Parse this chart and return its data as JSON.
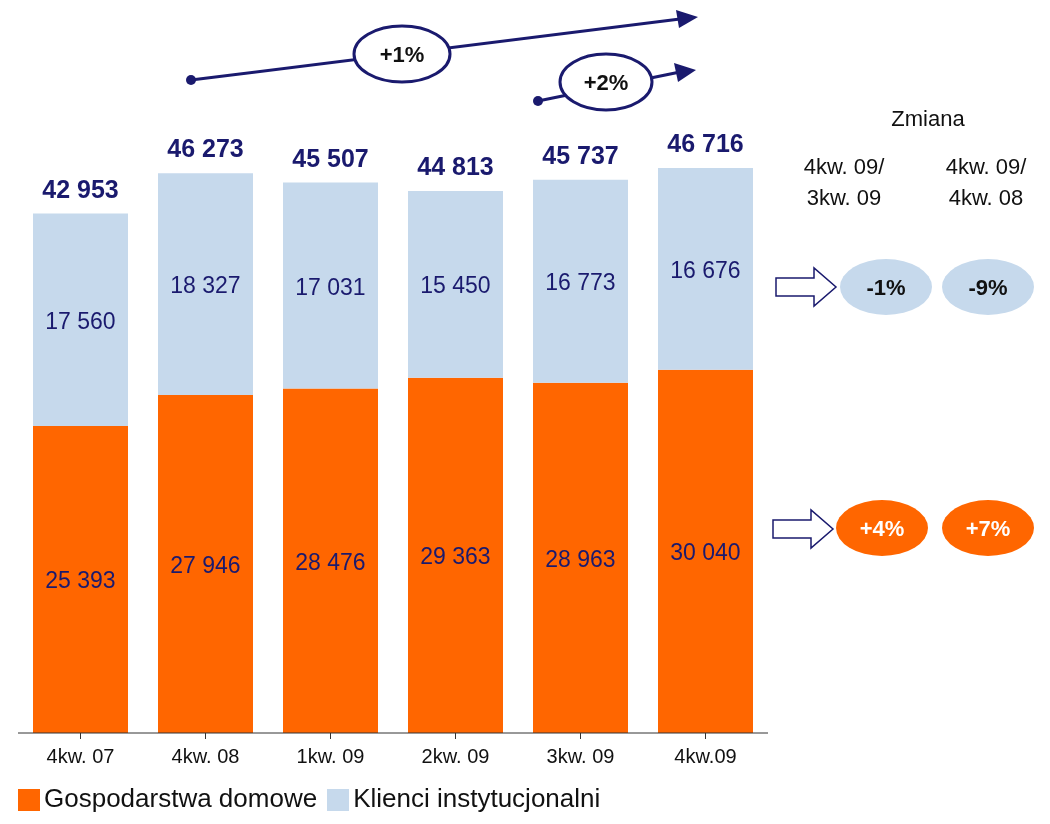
{
  "chart_data": {
    "type": "bar",
    "stacked": true,
    "categories": [
      "4kw. 07",
      "4kw. 08",
      "1kw. 09",
      "2kw. 09",
      "3kw.  09",
      "4kw.09"
    ],
    "series": [
      {
        "name": "Gospodarstwa domowe",
        "color": "#ff6600",
        "values": [
          25393,
          27946,
          28476,
          29363,
          28963,
          30040
        ],
        "value_labels": [
          "25 393",
          "27 946",
          "28 476",
          "29 363",
          "28 963",
          "30 040"
        ]
      },
      {
        "name": "Klienci instytucjonalni",
        "color": "#c6d9ec",
        "values": [
          17560,
          18327,
          17031,
          15450,
          16773,
          16676
        ],
        "value_labels": [
          "17 560",
          "18 327",
          "17 031",
          "15 450",
          "16 773",
          "16 676"
        ]
      }
    ],
    "totals": [
      "42 953",
      "46 273",
      "45 507",
      "44 813",
      "45 737",
      "46 716"
    ],
    "annotations": [
      "+1%",
      "+2%",
      "Zmiana",
      "4kw. 09/\n3kw. 09",
      "4kw. 09/\n4kw. 08",
      "-1%",
      "-9%",
      "+4%",
      "+7%"
    ],
    "legend": "bottom"
  }
}
